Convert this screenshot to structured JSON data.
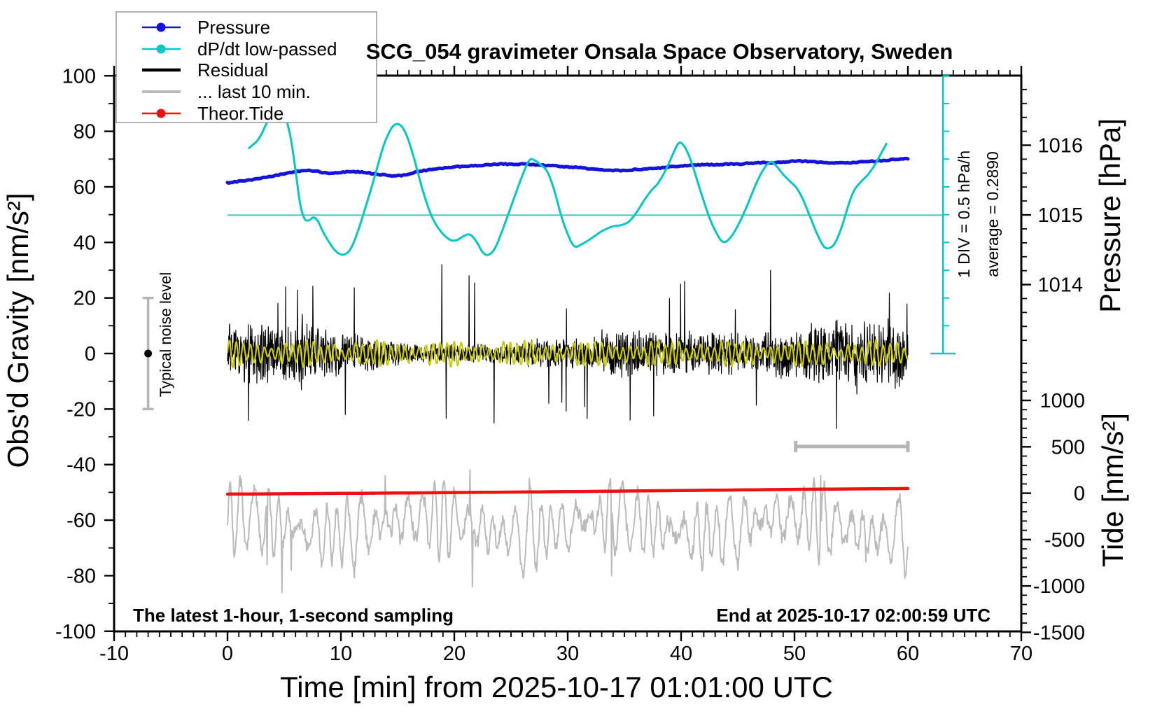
{
  "title": "SCG_054 gravimeter Onsala Space Observatory, Sweden",
  "axes": {
    "x": {
      "label": "Time [min] from 2025-10-17 01:01:00 UTC",
      "min": -10,
      "max": 70,
      "major_step": 10,
      "minor_step": 1
    },
    "y_left": {
      "label": "Obs'd Gravity [nm/s²]",
      "min": -100,
      "max": 100,
      "major_step": 20,
      "minor_step": 10
    },
    "y_pressure": {
      "label": "Pressure [hPa]",
      "major_ticks": [
        1014,
        1015,
        1016
      ],
      "minor_step": 0.2,
      "minor_min": 1013.2,
      "minor_max": 1016.8
    },
    "y_tide": {
      "label": "Tide [nm/s²]",
      "major_ticks": [
        -1500,
        -1000,
        -500,
        0,
        500,
        1000
      ],
      "minor_step": 100,
      "minor_min": -1500,
      "minor_max": 1400
    }
  },
  "legend": {
    "items": [
      {
        "label": "Pressure",
        "color": "#1414dd",
        "marker": true,
        "width": 2.5
      },
      {
        "label": "dP/dt low-passed",
        "color": "#00c8c8",
        "marker": true,
        "width": 2.5
      },
      {
        "label": "Residual",
        "color": "#000000",
        "marker": false,
        "width": 4.5
      },
      {
        "label": "... last 10 min.",
        "color": "#bbbbbb",
        "marker": false,
        "width": 4
      },
      {
        "label": "Theor.Tide",
        "color": "#ee1111",
        "marker": true,
        "width": 2.5
      }
    ]
  },
  "annotations": {
    "div_scale": "1 DIV = 0.5 hPa/h",
    "average": "average = 0.2890",
    "noise_level": "Typical noise level",
    "footer_left": "The latest 1-hour, 1-second sampling",
    "footer_right": "End at 2025-10-17 02:00:59 UTC"
  },
  "chart_data": {
    "type": "line",
    "xlabel": "Time [min] from 2025-10-17 01:01:00 UTC",
    "x_range": [
      -10,
      70
    ],
    "y_left_range": [
      -100,
      100
    ],
    "grid": false,
    "legend_position": "top-left",
    "dpdt_average_hpa_per_h": 0.289,
    "dpdt_div_hpa_per_h": 0.5,
    "colors": {
      "pressure": "#1414dd",
      "dpdt": "#00c8c8",
      "residual": "#000000",
      "residual_lowpass": "#cccc00",
      "last10": "#bbbbbb",
      "tide": "#ee1111",
      "scalebars": "#b5b5b5",
      "avg_line": "#35cbcb"
    },
    "series": [
      {
        "name": "Pressure",
        "units": "hPa",
        "axis": "pressure",
        "points": [
          [
            0,
            1015.46
          ],
          [
            1,
            1015.48
          ],
          [
            2,
            1015.5
          ],
          [
            3,
            1015.53
          ],
          [
            4,
            1015.56
          ],
          [
            5,
            1015.59
          ],
          [
            6,
            1015.62
          ],
          [
            7,
            1015.64
          ],
          [
            8,
            1015.62
          ],
          [
            9,
            1015.6
          ],
          [
            10,
            1015.61
          ],
          [
            11,
            1015.62
          ],
          [
            12,
            1015.61
          ],
          [
            13,
            1015.59
          ],
          [
            14,
            1015.57
          ],
          [
            15,
            1015.56
          ],
          [
            16,
            1015.59
          ],
          [
            17,
            1015.63
          ],
          [
            18,
            1015.65
          ],
          [
            19,
            1015.67
          ],
          [
            20,
            1015.69
          ],
          [
            21,
            1015.7
          ],
          [
            22,
            1015.71
          ],
          [
            23,
            1015.72
          ],
          [
            24,
            1015.73
          ],
          [
            25,
            1015.73
          ],
          [
            26,
            1015.73
          ],
          [
            27,
            1015.72
          ],
          [
            28,
            1015.71
          ],
          [
            29,
            1015.7
          ],
          [
            30,
            1015.69
          ],
          [
            31,
            1015.68
          ],
          [
            32,
            1015.66
          ],
          [
            33,
            1015.65
          ],
          [
            34,
            1015.64
          ],
          [
            35,
            1015.64
          ],
          [
            36,
            1015.65
          ],
          [
            37,
            1015.66
          ],
          [
            38,
            1015.67
          ],
          [
            39,
            1015.69
          ],
          [
            40,
            1015.7
          ],
          [
            41,
            1015.71
          ],
          [
            42,
            1015.72
          ],
          [
            43,
            1015.72
          ],
          [
            44,
            1015.73
          ],
          [
            45,
            1015.73
          ],
          [
            46,
            1015.74
          ],
          [
            47,
            1015.75
          ],
          [
            48,
            1015.75
          ],
          [
            49,
            1015.76
          ],
          [
            50,
            1015.77
          ],
          [
            51,
            1015.77
          ],
          [
            52,
            1015.76
          ],
          [
            53,
            1015.75
          ],
          [
            54,
            1015.75
          ],
          [
            55,
            1015.75
          ],
          [
            56,
            1015.76
          ],
          [
            57,
            1015.77
          ],
          [
            58,
            1015.78
          ],
          [
            59,
            1015.8
          ],
          [
            60,
            1015.81
          ]
        ]
      },
      {
        "name": "dP/dt low-passed",
        "units": "gravity-axis nm/s² (1 DIV = 0.5 hPa/h)",
        "axis": "gravity",
        "points": [
          [
            1.9,
            74
          ],
          [
            2.2,
            75
          ],
          [
            2.6,
            76.5
          ],
          [
            3.0,
            79
          ],
          [
            3.4,
            82.5
          ],
          [
            3.9,
            86
          ],
          [
            4.4,
            88
          ],
          [
            4.8,
            87.5
          ],
          [
            5.2,
            84
          ],
          [
            5.6,
            77
          ],
          [
            6.0,
            66
          ],
          [
            6.4,
            54
          ],
          [
            6.8,
            48.5
          ],
          [
            7.2,
            48
          ],
          [
            7.6,
            49
          ],
          [
            8.0,
            47.5
          ],
          [
            8.4,
            44
          ],
          [
            8.9,
            40.5
          ],
          [
            9.4,
            37.5
          ],
          [
            9.9,
            35.8
          ],
          [
            10.4,
            35.8
          ],
          [
            10.9,
            38
          ],
          [
            11.5,
            44
          ],
          [
            12.2,
            53
          ],
          [
            13.0,
            64
          ],
          [
            13.7,
            74
          ],
          [
            14.3,
            80
          ],
          [
            14.8,
            82.5
          ],
          [
            15.3,
            82
          ],
          [
            15.8,
            78.5
          ],
          [
            16.4,
            71
          ],
          [
            17.2,
            59
          ],
          [
            18.0,
            49.5
          ],
          [
            18.8,
            44
          ],
          [
            19.6,
            41
          ],
          [
            20.2,
            40.8
          ],
          [
            20.8,
            42.2
          ],
          [
            21.4,
            42.8
          ],
          [
            22.0,
            40
          ],
          [
            22.5,
            36.5
          ],
          [
            23.0,
            35.5
          ],
          [
            23.6,
            38
          ],
          [
            24.3,
            45
          ],
          [
            25.1,
            54
          ],
          [
            25.9,
            63
          ],
          [
            26.6,
            69.5
          ],
          [
            27.1,
            69.5
          ],
          [
            27.6,
            68
          ],
          [
            28.2,
            65.5
          ],
          [
            28.8,
            59
          ],
          [
            29.4,
            50
          ],
          [
            30.0,
            43
          ],
          [
            30.6,
            38.6
          ],
          [
            31.3,
            39.5
          ],
          [
            32.1,
            41.5
          ],
          [
            33.0,
            44
          ],
          [
            34.0,
            45.8
          ],
          [
            34.7,
            46.2
          ],
          [
            35.4,
            47.5
          ],
          [
            36.1,
            51
          ],
          [
            36.8,
            55.5
          ],
          [
            37.4,
            58.8
          ],
          [
            38.0,
            61.5
          ],
          [
            38.7,
            66.5
          ],
          [
            39.3,
            72
          ],
          [
            39.8,
            75.8
          ],
          [
            40.3,
            74.5
          ],
          [
            40.9,
            69
          ],
          [
            41.6,
            60
          ],
          [
            42.4,
            50
          ],
          [
            43.1,
            43.5
          ],
          [
            43.7,
            40.2
          ],
          [
            44.3,
            41.5
          ],
          [
            45.0,
            46
          ],
          [
            45.8,
            53
          ],
          [
            46.6,
            61
          ],
          [
            47.3,
            66.5
          ],
          [
            47.9,
            69
          ],
          [
            48.4,
            67.5
          ],
          [
            49.0,
            64.5
          ],
          [
            49.6,
            62
          ],
          [
            50.2,
            59.5
          ],
          [
            50.8,
            55
          ],
          [
            51.4,
            49
          ],
          [
            52.0,
            43
          ],
          [
            52.6,
            38.5
          ],
          [
            53.1,
            38
          ],
          [
            53.6,
            40
          ],
          [
            54.2,
            46
          ],
          [
            54.8,
            54
          ],
          [
            55.3,
            59
          ],
          [
            55.9,
            62
          ],
          [
            56.5,
            64.5
          ],
          [
            57.1,
            68
          ],
          [
            57.7,
            72.5
          ],
          [
            58.1,
            75.5
          ]
        ]
      },
      {
        "name": "Theor.Tide",
        "units": "nm/s² (tide axis)",
        "axis": "tide",
        "points": [
          [
            0,
            -10
          ],
          [
            5,
            -6
          ],
          [
            10,
            -2
          ],
          [
            15,
            2
          ],
          [
            20,
            7
          ],
          [
            25,
            12
          ],
          [
            30,
            17
          ],
          [
            35,
            23
          ],
          [
            40,
            29
          ],
          [
            45,
            35
          ],
          [
            50,
            41
          ],
          [
            55,
            46
          ],
          [
            60,
            50
          ]
        ]
      },
      {
        "name": "Residual",
        "units": "nm/s² (gravity axis)",
        "axis": "gravity",
        "synthesized": true,
        "synthesis": {
          "seed": 1234,
          "n": 2200,
          "t0": 0,
          "t1": 60,
          "mean": 0,
          "envelope_base": 7,
          "envelope_var": 5,
          "spike_prob": 0.014,
          "spikes": [
            [
              18.9,
              32
            ],
            [
              21.3,
              28
            ],
            [
              40.3,
              26
            ],
            [
              47.9,
              30
            ],
            [
              10.4,
              -22
            ],
            [
              23.5,
              -25
            ],
            [
              35.5,
              -24
            ],
            [
              53.7,
              -27
            ]
          ],
          "clip": [
            -30,
            34
          ]
        }
      },
      {
        "name": "Residual low-passed (yellow overlay)",
        "units": "nm/s² (gravity axis)",
        "axis": "gravity",
        "synthesized": true,
        "synthesis": {
          "n": 1800,
          "t0": 0,
          "t1": 60,
          "mean": 0,
          "amp_base": 2.1,
          "amp_var": 1.7,
          "period_min": 0.62
        }
      },
      {
        "name": "... last 10 min.",
        "units": "nm/s² (gravity axis, re-scaled last 10 minutes of residual)",
        "axis": "gravity",
        "synthesized": true,
        "synthesis": {
          "seed": 777,
          "n": 1100,
          "t0": 0,
          "t1": 60,
          "mean": -62,
          "amp_base": 8.5,
          "amp_var": 6.5,
          "period_min": 1.05,
          "spikes": [
            [
              3.5,
              -76
            ],
            [
              4.8,
              -86
            ],
            [
              5.6,
              -78
            ],
            [
              21.6,
              -84
            ],
            [
              33.9,
              -80
            ],
            [
              56.3,
              -75
            ],
            [
              13.9,
              -44
            ],
            [
              21.4,
              -42
            ],
            [
              26.6,
              -45
            ],
            [
              52.3,
              -44
            ]
          ],
          "clip": [
            -88,
            -40
          ]
        }
      }
    ],
    "reference_marks": {
      "avg_line": {
        "t0": 0,
        "t1": 63.1,
        "gravity": 49.8,
        "meaning": "average dP/dt level"
      },
      "div_axis": {
        "t": 63.1,
        "gravity_top": 100,
        "gravity_bottom": 0,
        "n_div": 10
      },
      "noise_bar": {
        "t": -7,
        "gravity_center": 0,
        "gravity_half_span": 20
      },
      "last10_span_bar": {
        "t0": 50.1,
        "t1": 60,
        "gravity": -33.5
      }
    }
  }
}
